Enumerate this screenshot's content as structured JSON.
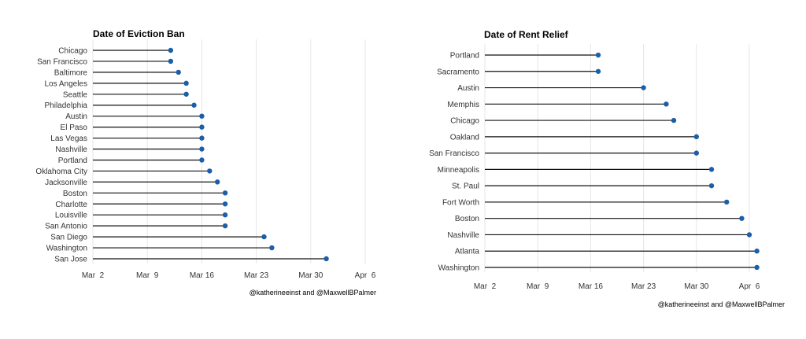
{
  "chart_data": [
    {
      "type": "lollipop",
      "title": "Date of Eviction Ban",
      "credit": "@katherineeinst and @MaxwellBPalmer",
      "x_axis": {
        "min": "2020-03-02",
        "max": "2020-04-06",
        "ticks": [
          {
            "date": "2020-03-02",
            "label": "Mar  2"
          },
          {
            "date": "2020-03-09",
            "label": "Mar  9"
          },
          {
            "date": "2020-03-16",
            "label": "Mar 16"
          },
          {
            "date": "2020-03-23",
            "label": "Mar 23"
          },
          {
            "date": "2020-03-30",
            "label": "Mar 30"
          },
          {
            "date": "2020-04-06",
            "label": "Apr  6"
          }
        ]
      },
      "grid": true,
      "categories": [
        "Chicago",
        "San Francisco",
        "Baltimore",
        "Los Angeles",
        "Seattle",
        "Philadelphia",
        "Austin",
        "El Paso",
        "Las Vegas",
        "Nashville",
        "Portland",
        "Oklahoma City",
        "Jacksonville",
        "Boston",
        "Charlotte",
        "Louisville",
        "San Antonio",
        "San Diego",
        "Washington",
        "San Jose"
      ],
      "values": [
        "2020-03-12",
        "2020-03-12",
        "2020-03-13",
        "2020-03-14",
        "2020-03-14",
        "2020-03-15",
        "2020-03-16",
        "2020-03-16",
        "2020-03-16",
        "2020-03-16",
        "2020-03-16",
        "2020-03-17",
        "2020-03-18",
        "2020-03-19",
        "2020-03-19",
        "2020-03-19",
        "2020-03-19",
        "2020-03-24",
        "2020-03-25",
        "2020-04-01"
      ]
    },
    {
      "type": "lollipop",
      "title": "Date of Rent Relief",
      "credit": "@katherineeinst and @MaxwellBPalmer",
      "x_axis": {
        "min": "2020-03-02",
        "max": "2020-04-06",
        "ticks": [
          {
            "date": "2020-03-02",
            "label": "Mar  2"
          },
          {
            "date": "2020-03-09",
            "label": "Mar  9"
          },
          {
            "date": "2020-03-16",
            "label": "Mar 16"
          },
          {
            "date": "2020-03-23",
            "label": "Mar 23"
          },
          {
            "date": "2020-03-30",
            "label": "Mar 30"
          },
          {
            "date": "2020-04-06",
            "label": "Apr  6"
          }
        ]
      },
      "grid": true,
      "categories": [
        "Portland",
        "Sacramento",
        "Austin",
        "Memphis",
        "Chicago",
        "Oakland",
        "San Francisco",
        "Minneapolis",
        "St. Paul",
        "Fort Worth",
        "Boston",
        "Nashville",
        "Atlanta",
        "Washington"
      ],
      "values": [
        "2020-03-17",
        "2020-03-17",
        "2020-03-23",
        "2020-03-26",
        "2020-03-27",
        "2020-03-30",
        "2020-03-30",
        "2020-04-01",
        "2020-04-01",
        "2020-04-03",
        "2020-04-05",
        "2020-04-06",
        "2020-04-07",
        "2020-04-07"
      ]
    }
  ]
}
